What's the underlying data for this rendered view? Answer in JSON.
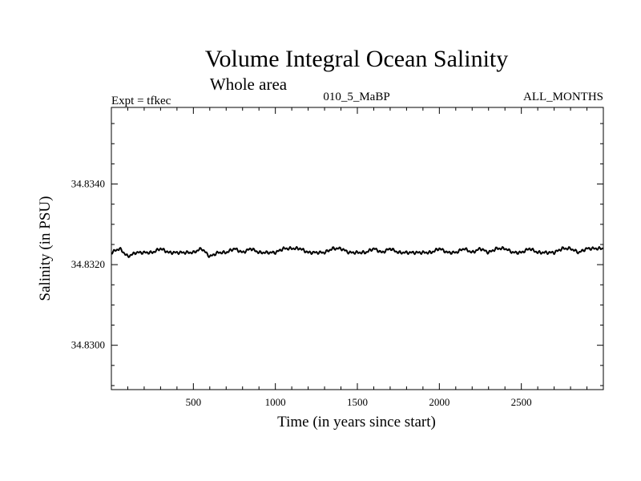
{
  "chart_data": {
    "type": "line",
    "title": "Volume Integral Ocean Salinity",
    "subtitle": "Whole area",
    "header_left": "Expt = tfkec",
    "header_center": "010_5_MaBP",
    "header_right": "ALL_MONTHS",
    "xlabel": "Time (in years since start)",
    "ylabel": "Salinity (in PSU)",
    "xlim": [
      0,
      3000
    ],
    "ylim": [
      34.8289,
      34.8359
    ],
    "x_ticks": [
      500,
      1000,
      1500,
      2000,
      2500
    ],
    "x_tick_labels": [
      "500",
      "1000",
      "1500",
      "2000",
      "2500"
    ],
    "y_ticks": [
      34.83,
      34.832,
      34.834
    ],
    "y_tick_labels": [
      "34.8300",
      "34.8320",
      "34.8340"
    ],
    "grid": false,
    "series_color": "#000000",
    "series": [
      {
        "x": [
          0,
          50,
          100,
          150,
          200,
          250,
          300,
          350,
          400,
          450,
          500,
          550,
          600,
          650,
          700,
          750,
          800,
          850,
          900,
          950,
          1000,
          1050,
          1100,
          1150,
          1200,
          1250,
          1300,
          1350,
          1400,
          1450,
          1500,
          1550,
          1600,
          1650,
          1700,
          1750,
          1800,
          1850,
          1900,
          1950,
          2000,
          2050,
          2100,
          2150,
          2200,
          2250,
          2300,
          2350,
          2400,
          2450,
          2500,
          2550,
          2600,
          2650,
          2700,
          2750,
          2800,
          2850,
          2900,
          2950,
          3000
        ],
        "values": [
          34.8323,
          34.8324,
          34.8322,
          34.8323,
          34.8323,
          34.8323,
          34.8324,
          34.8323,
          34.8323,
          34.8323,
          34.8323,
          34.8324,
          34.8322,
          34.8323,
          34.8323,
          34.8324,
          34.8323,
          34.8324,
          34.8323,
          34.8323,
          34.8323,
          34.8324,
          34.8324,
          34.8324,
          34.8323,
          34.8323,
          34.8323,
          34.8324,
          34.8324,
          34.8323,
          34.8323,
          34.8323,
          34.8324,
          34.8323,
          34.8324,
          34.8323,
          34.8323,
          34.8323,
          34.8323,
          34.8323,
          34.8324,
          34.8323,
          34.8323,
          34.8324,
          34.8323,
          34.8324,
          34.8323,
          34.8324,
          34.8324,
          34.8323,
          34.8323,
          34.8324,
          34.8323,
          34.8323,
          34.8323,
          34.8324,
          34.8324,
          34.8323,
          34.8324,
          34.8324,
          34.8324
        ]
      }
    ]
  }
}
